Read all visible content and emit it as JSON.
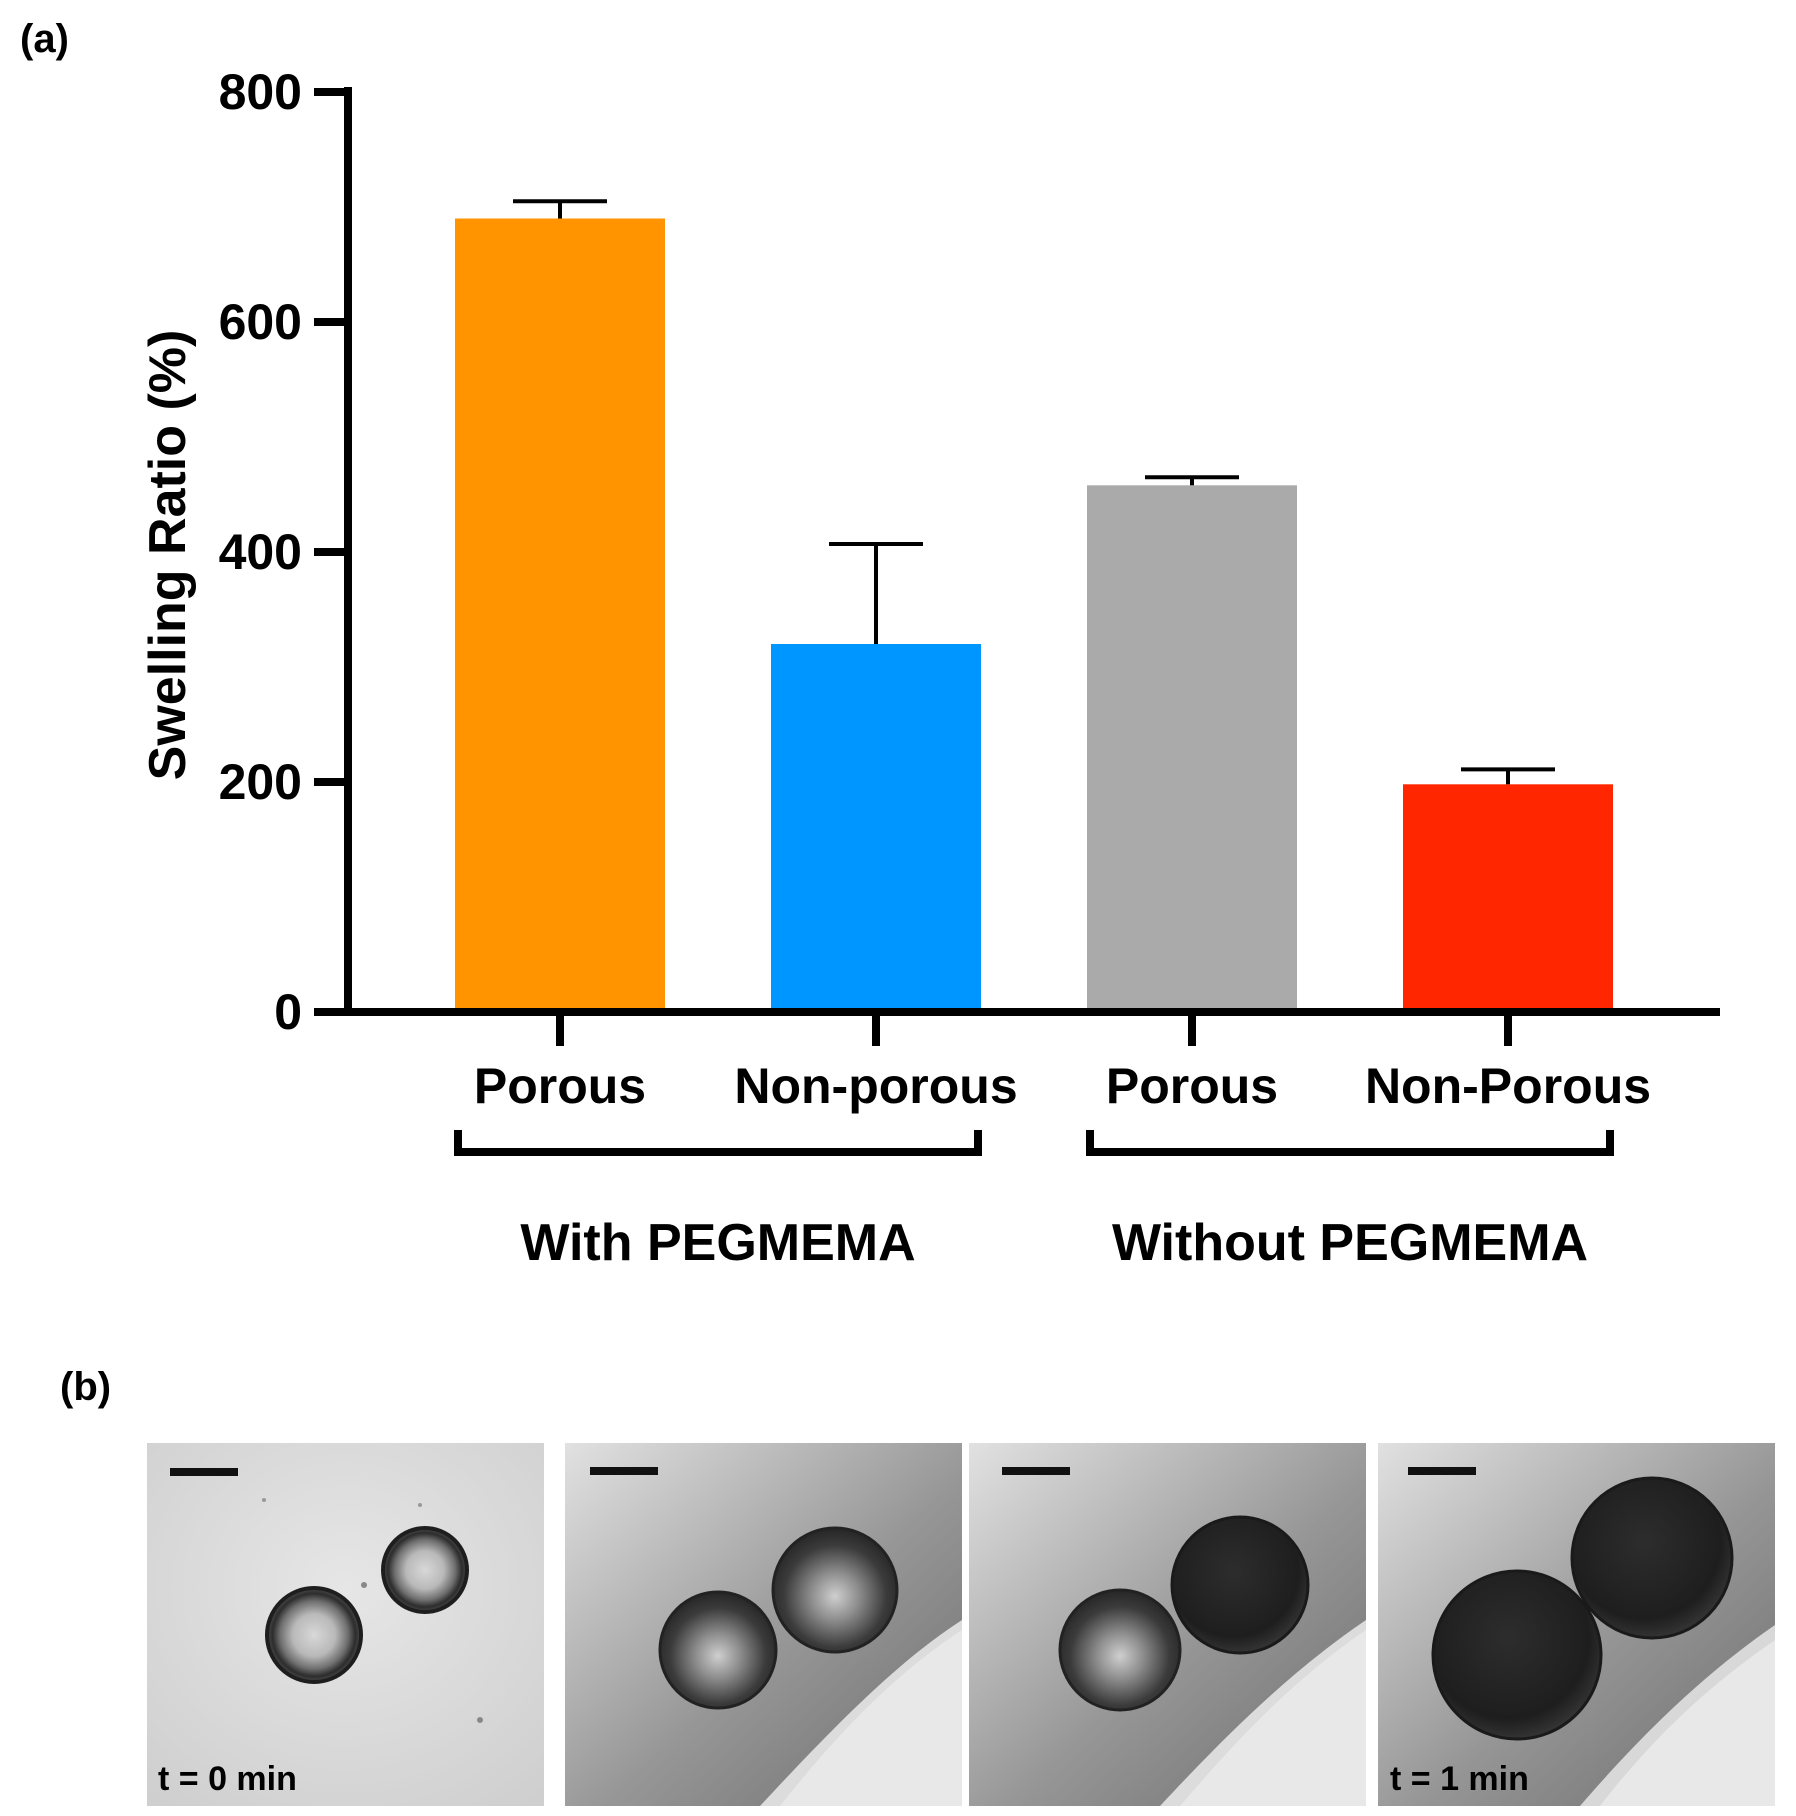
{
  "panel_a_label": "(a)",
  "panel_b_label": "(b)",
  "chart_data": {
    "type": "bar",
    "title": "",
    "xlabel": "",
    "ylabel": "Swelling Ratio (%)",
    "ylim": [
      0,
      800
    ],
    "yticks": [
      "0",
      "200",
      "400",
      "600",
      "800"
    ],
    "categories": [
      "Porous",
      "Non-porous",
      "Porous",
      "Non-Porous"
    ],
    "values": [
      690,
      320,
      458,
      198
    ],
    "errors": [
      15,
      87,
      7,
      13
    ],
    "colors": [
      "#FF9400",
      "#0096FF",
      "#AAAAAA",
      "#FF2600"
    ],
    "groups": [
      {
        "label": "With PEGMEMA",
        "members": [
          0,
          1
        ]
      },
      {
        "label": "Without PEGMEMA",
        "members": [
          2,
          3
        ]
      }
    ]
  },
  "micrographs": {
    "frames": [
      {
        "time_label": "t = 0 min",
        "state": "dry"
      },
      {
        "time_label": "",
        "state": "partially-swollen"
      },
      {
        "time_label": "",
        "state": "partially-swollen"
      },
      {
        "time_label": "t = 1 min",
        "state": "swollen"
      }
    ]
  }
}
